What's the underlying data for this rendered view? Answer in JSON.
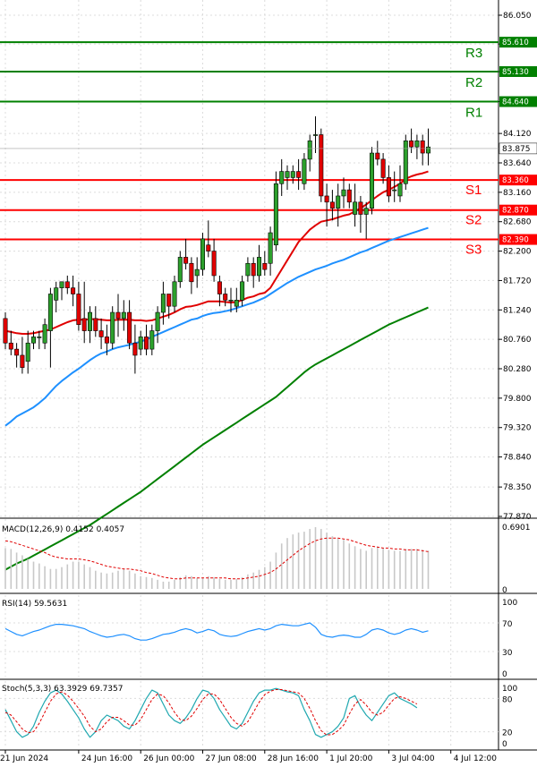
{
  "colors": {
    "bull": "#2ca02c",
    "bear": "#e00000",
    "wick": "#000000",
    "resistance": "#008000",
    "support": "#ff0000",
    "ma_fast": "#e00000",
    "ma_mid": "#1e90ff",
    "ma_slow": "#008000",
    "macd_hist": "#c8c8c8",
    "macd_signal": "#e00000",
    "rsi_line": "#1e90ff",
    "stoch_k": "#20a8b0",
    "stoch_d": "#e00000",
    "grid": "#dcdcdc"
  },
  "chart_data": [
    {
      "type": "candlestick",
      "name": "price",
      "x_labels": [
        "21 Jun 2024",
        "24 Jun 16:00",
        "26 Jun 00:00",
        "27 Jun 08:00",
        "28 Jun 16:00",
        "1 Jul 20:00",
        "3 Jul 04:00",
        "4 Jul 12:00"
      ],
      "x_label_index": [
        0,
        13,
        24,
        35,
        46,
        57,
        68,
        79
      ],
      "ylim": [
        77.87,
        86.05
      ],
      "yticks": [
        "86.050",
        "85.580",
        "85.130",
        "84.640",
        "84.120",
        "83.640",
        "83.160",
        "82.680",
        "82.200",
        "81.720",
        "81.240",
        "80.760",
        "80.280",
        "79.800",
        "79.320",
        "78.840",
        "78.350",
        "77.870"
      ],
      "levels": [
        {
          "label": "R3",
          "value": 85.61,
          "badge": "85.610",
          "kind": "resistance"
        },
        {
          "label": "R2",
          "value": 85.13,
          "badge": "85.130",
          "kind": "resistance"
        },
        {
          "label": "R1",
          "value": 84.64,
          "badge": "84.640",
          "kind": "resistance"
        },
        {
          "label": "S1",
          "value": 83.36,
          "badge": "83.360",
          "kind": "support"
        },
        {
          "label": "S2",
          "value": 82.87,
          "badge": "82.870",
          "kind": "support"
        },
        {
          "label": "S3",
          "value": 82.39,
          "badge": "82.390",
          "kind": "support"
        }
      ],
      "last_price": {
        "value": 83.875,
        "badge": "83.875"
      },
      "candles": [
        [
          81.1,
          81.2,
          80.6,
          80.7
        ],
        [
          80.7,
          80.9,
          80.5,
          80.6
        ],
        [
          80.6,
          80.7,
          80.3,
          80.5
        ],
        [
          80.5,
          80.8,
          80.2,
          80.3
        ],
        [
          80.4,
          80.9,
          80.2,
          80.7
        ],
        [
          80.7,
          80.9,
          80.6,
          80.8
        ],
        [
          80.8,
          80.9,
          80.6,
          80.8
        ],
        [
          80.7,
          81.1,
          80.6,
          81.0
        ],
        [
          80.9,
          81.6,
          80.3,
          81.5
        ],
        [
          81.4,
          81.7,
          81.2,
          81.6
        ],
        [
          81.6,
          81.7,
          81.4,
          81.7
        ],
        [
          81.7,
          81.8,
          81.5,
          81.6
        ],
        [
          81.6,
          81.8,
          81.3,
          81.5
        ],
        [
          81.5,
          81.7,
          80.9,
          81.0
        ],
        [
          81.1,
          81.7,
          80.7,
          80.9
        ],
        [
          80.9,
          81.3,
          80.7,
          81.2
        ],
        [
          81.1,
          81.3,
          80.8,
          80.9
        ],
        [
          80.9,
          81.1,
          80.6,
          80.8
        ],
        [
          80.8,
          81.0,
          80.5,
          80.7
        ],
        [
          80.7,
          81.3,
          80.6,
          81.2
        ],
        [
          81.2,
          81.5,
          80.8,
          81.1
        ],
        [
          81.1,
          81.4,
          80.9,
          81.2
        ],
        [
          81.2,
          81.4,
          80.6,
          80.7
        ],
        [
          80.7,
          81.0,
          80.2,
          80.5
        ],
        [
          80.6,
          80.9,
          80.5,
          80.8
        ],
        [
          80.8,
          81.0,
          80.5,
          80.6
        ],
        [
          80.6,
          81.0,
          80.5,
          80.9
        ],
        [
          80.9,
          81.3,
          80.7,
          81.2
        ],
        [
          81.2,
          81.7,
          81.0,
          81.5
        ],
        [
          81.5,
          81.5,
          81.1,
          81.3
        ],
        [
          81.3,
          81.8,
          81.2,
          81.7
        ],
        [
          81.7,
          82.2,
          81.6,
          82.1
        ],
        [
          82.1,
          82.4,
          81.9,
          82.0
        ],
        [
          82.0,
          82.1,
          81.5,
          81.7
        ],
        [
          81.8,
          82.1,
          81.6,
          81.9
        ],
        [
          81.9,
          82.5,
          81.8,
          82.4
        ],
        [
          82.3,
          82.7,
          82.1,
          82.2
        ],
        [
          82.2,
          82.4,
          81.7,
          81.8
        ],
        [
          81.7,
          81.8,
          81.3,
          81.5
        ],
        [
          81.5,
          81.6,
          81.3,
          81.4
        ],
        [
          81.4,
          81.6,
          81.2,
          81.4
        ],
        [
          81.3,
          81.6,
          81.2,
          81.4
        ],
        [
          81.4,
          81.8,
          81.3,
          81.7
        ],
        [
          81.8,
          82.1,
          81.7,
          82.0
        ],
        [
          82.0,
          82.1,
          81.6,
          81.8
        ],
        [
          81.8,
          82.3,
          81.7,
          82.1
        ],
        [
          82.0,
          82.2,
          81.8,
          81.9
        ],
        [
          82.0,
          82.6,
          81.8,
          82.5
        ],
        [
          82.3,
          83.5,
          82.2,
          83.3
        ],
        [
          83.3,
          83.7,
          83.1,
          83.5
        ],
        [
          83.4,
          83.6,
          83.2,
          83.5
        ],
        [
          83.4,
          83.6,
          83.3,
          83.5
        ],
        [
          83.5,
          83.7,
          83.2,
          83.4
        ],
        [
          83.3,
          83.8,
          83.2,
          83.7
        ],
        [
          83.7,
          84.1,
          83.5,
          84.0
        ],
        [
          84.1,
          84.4,
          83.8,
          84.1
        ],
        [
          84.1,
          84.2,
          83.0,
          83.1
        ],
        [
          83.1,
          83.3,
          82.6,
          83.0
        ],
        [
          83.0,
          83.2,
          82.7,
          82.9
        ],
        [
          82.9,
          83.3,
          82.6,
          83.1
        ],
        [
          83.1,
          83.4,
          82.9,
          83.2
        ],
        [
          83.2,
          83.3,
          82.9,
          83.0
        ],
        [
          82.8,
          83.3,
          82.6,
          83.0
        ],
        [
          83.0,
          83.1,
          82.5,
          82.8
        ],
        [
          82.8,
          83.0,
          82.4,
          82.9
        ],
        [
          82.9,
          83.9,
          82.8,
          83.8
        ],
        [
          83.8,
          84.0,
          83.6,
          83.7
        ],
        [
          83.7,
          83.8,
          83.3,
          83.4
        ],
        [
          83.4,
          83.6,
          83.0,
          83.1
        ],
        [
          83.2,
          83.5,
          83.0,
          83.2
        ],
        [
          83.1,
          83.6,
          83.0,
          83.3
        ],
        [
          83.3,
          84.1,
          83.2,
          84.0
        ],
        [
          84.0,
          84.2,
          83.8,
          83.9
        ],
        [
          83.9,
          84.1,
          83.7,
          84.0
        ],
        [
          84.0,
          84.1,
          83.6,
          83.8
        ],
        [
          83.8,
          84.2,
          83.6,
          83.9
        ]
      ],
      "ma_fast": [
        80.9,
        80.88,
        80.86,
        80.85,
        80.85,
        80.86,
        80.88,
        80.9,
        80.92,
        80.96,
        81.0,
        81.04,
        81.07,
        81.08,
        81.08,
        81.09,
        81.09,
        81.08,
        81.07,
        81.07,
        81.08,
        81.08,
        81.08,
        81.07,
        81.07,
        81.06,
        81.07,
        81.1,
        81.13,
        81.16,
        81.2,
        81.25,
        81.29,
        81.3,
        81.32,
        81.35,
        81.38,
        81.38,
        81.38,
        81.37,
        81.36,
        81.37,
        81.4,
        81.44,
        81.46,
        81.5,
        81.52,
        81.6,
        81.75,
        81.9,
        82.05,
        82.2,
        82.35,
        82.45,
        82.55,
        82.62,
        82.68,
        82.7,
        82.72,
        82.75,
        82.78,
        82.8,
        82.85,
        82.9,
        82.96,
        83.03,
        83.1,
        83.16,
        83.2,
        83.25,
        83.3,
        83.38,
        83.42,
        83.45,
        83.47,
        83.5
      ],
      "ma_mid": [
        79.35,
        79.42,
        79.5,
        79.55,
        79.6,
        79.65,
        79.72,
        79.8,
        79.9,
        80.0,
        80.08,
        80.15,
        80.22,
        80.28,
        80.35,
        80.42,
        80.48,
        80.53,
        80.56,
        80.6,
        80.63,
        80.65,
        80.67,
        80.7,
        80.72,
        80.76,
        80.8,
        80.84,
        80.88,
        80.92,
        80.96,
        81.0,
        81.04,
        81.08,
        81.1,
        81.14,
        81.17,
        81.19,
        81.2,
        81.22,
        81.24,
        81.27,
        81.3,
        81.33,
        81.36,
        81.4,
        81.44,
        81.5,
        81.56,
        81.62,
        81.68,
        81.73,
        81.78,
        81.82,
        81.86,
        81.9,
        81.93,
        81.96,
        82.0,
        82.03,
        82.06,
        82.1,
        82.14,
        82.18,
        82.21,
        82.25,
        82.29,
        82.33,
        82.37,
        82.4,
        82.43,
        82.46,
        82.49,
        82.52,
        82.55,
        82.58
      ],
      "ma_slow": [
        77.0,
        77.05,
        77.1,
        77.14,
        77.18,
        77.23,
        77.28,
        77.33,
        77.38,
        77.43,
        77.48,
        77.53,
        77.58,
        77.63,
        77.68,
        77.73,
        77.79,
        77.85,
        77.91,
        77.97,
        78.03,
        78.09,
        78.15,
        78.21,
        78.27,
        78.34,
        78.41,
        78.48,
        78.55,
        78.62,
        78.69,
        78.76,
        78.83,
        78.9,
        78.97,
        79.04,
        79.1,
        79.16,
        79.22,
        79.28,
        79.34,
        79.4,
        79.46,
        79.52,
        79.58,
        79.64,
        79.7,
        79.76,
        79.82,
        79.9,
        79.98,
        80.06,
        80.14,
        80.22,
        80.29,
        80.35,
        80.4,
        80.45,
        80.5,
        80.55,
        80.6,
        80.65,
        80.7,
        80.75,
        80.8,
        80.85,
        80.9,
        80.95,
        81.0,
        81.04,
        81.08,
        81.12,
        81.16,
        81.2,
        81.24,
        81.28
      ]
    },
    {
      "type": "bar",
      "name": "MACD",
      "label": "MACD(12,26,9) 0.4152 0.4057",
      "yticks": [
        "0.6901",
        "0"
      ],
      "ylim": [
        0,
        0.6901
      ],
      "histogram": [
        0.45,
        0.44,
        0.4,
        0.37,
        0.33,
        0.3,
        0.28,
        0.25,
        0.22,
        0.22,
        0.24,
        0.27,
        0.3,
        0.3,
        0.27,
        0.24,
        0.2,
        0.18,
        0.17,
        0.18,
        0.2,
        0.22,
        0.2,
        0.17,
        0.14,
        0.13,
        0.12,
        0.1,
        0.08,
        0.08,
        0.1,
        0.13,
        0.15,
        0.14,
        0.12,
        0.12,
        0.14,
        0.13,
        0.11,
        0.1,
        0.1,
        0.11,
        0.13,
        0.16,
        0.18,
        0.21,
        0.24,
        0.3,
        0.4,
        0.5,
        0.56,
        0.6,
        0.62,
        0.63,
        0.66,
        0.68,
        0.66,
        0.62,
        0.58,
        0.56,
        0.54,
        0.5,
        0.47,
        0.44,
        0.42,
        0.45,
        0.46,
        0.45,
        0.43,
        0.42,
        0.42,
        0.44,
        0.44,
        0.44,
        0.43,
        0.42
      ],
      "signal": [
        0.53,
        0.52,
        0.5,
        0.48,
        0.46,
        0.44,
        0.42,
        0.4,
        0.37,
        0.35,
        0.34,
        0.33,
        0.33,
        0.33,
        0.32,
        0.31,
        0.29,
        0.27,
        0.25,
        0.24,
        0.23,
        0.22,
        0.22,
        0.21,
        0.2,
        0.18,
        0.17,
        0.15,
        0.13,
        0.12,
        0.11,
        0.11,
        0.12,
        0.12,
        0.12,
        0.12,
        0.12,
        0.12,
        0.12,
        0.12,
        0.11,
        0.11,
        0.11,
        0.12,
        0.13,
        0.14,
        0.16,
        0.18,
        0.22,
        0.27,
        0.32,
        0.37,
        0.42,
        0.46,
        0.5,
        0.53,
        0.55,
        0.56,
        0.56,
        0.56,
        0.55,
        0.54,
        0.52,
        0.5,
        0.48,
        0.47,
        0.46,
        0.45,
        0.45,
        0.44,
        0.44,
        0.43,
        0.43,
        0.43,
        0.42,
        0.41
      ]
    },
    {
      "type": "line",
      "name": "RSI",
      "label": "RSI(14) 59.5631",
      "yticks": [
        "100",
        "70",
        "30",
        "0"
      ],
      "ylim": [
        0,
        100
      ],
      "values": [
        62,
        58,
        54,
        52,
        55,
        58,
        60,
        63,
        66,
        68,
        68,
        67,
        66,
        64,
        62,
        58,
        55,
        52,
        50,
        51,
        53,
        54,
        52,
        48,
        46,
        46,
        48,
        51,
        54,
        55,
        57,
        60,
        62,
        60,
        56,
        58,
        61,
        59,
        54,
        52,
        51,
        52,
        55,
        58,
        60,
        62,
        60,
        62,
        66,
        68,
        67,
        66,
        66,
        68,
        70,
        64,
        54,
        51,
        50,
        52,
        53,
        52,
        50,
        50,
        54,
        60,
        62,
        60,
        56,
        54,
        56,
        60,
        62,
        60,
        57,
        59
      ]
    },
    {
      "type": "line",
      "name": "Stoch",
      "label": "Stoch(5,3,3) 63.3929 69.7357",
      "yticks": [
        "100",
        "80",
        "20",
        "0"
      ],
      "ylim": [
        0,
        100
      ],
      "k": [
        60,
        40,
        20,
        10,
        15,
        30,
        55,
        75,
        90,
        95,
        88,
        75,
        60,
        45,
        25,
        10,
        20,
        40,
        50,
        45,
        40,
        30,
        25,
        40,
        60,
        80,
        95,
        90,
        70,
        50,
        40,
        35,
        45,
        60,
        80,
        95,
        92,
        80,
        60,
        45,
        30,
        25,
        35,
        55,
        75,
        90,
        95,
        95,
        98,
        95,
        92,
        90,
        85,
        60,
        40,
        15,
        10,
        15,
        20,
        30,
        45,
        80,
        85,
        65,
        50,
        40,
        55,
        70,
        85,
        90,
        80,
        75,
        70,
        63
      ],
      "d": [
        55,
        50,
        38,
        25,
        18,
        20,
        35,
        55,
        75,
        88,
        92,
        86,
        75,
        62,
        48,
        30,
        20,
        25,
        38,
        46,
        46,
        40,
        32,
        32,
        42,
        60,
        78,
        88,
        85,
        72,
        55,
        42,
        40,
        48,
        62,
        78,
        88,
        88,
        78,
        62,
        46,
        35,
        30,
        38,
        55,
        73,
        87,
        93,
        96,
        96,
        94,
        92,
        90,
        80,
        62,
        40,
        22,
        14,
        15,
        22,
        32,
        52,
        70,
        78,
        68,
        55,
        50,
        55,
        68,
        80,
        83,
        80,
        75,
        70
      ]
    }
  ]
}
